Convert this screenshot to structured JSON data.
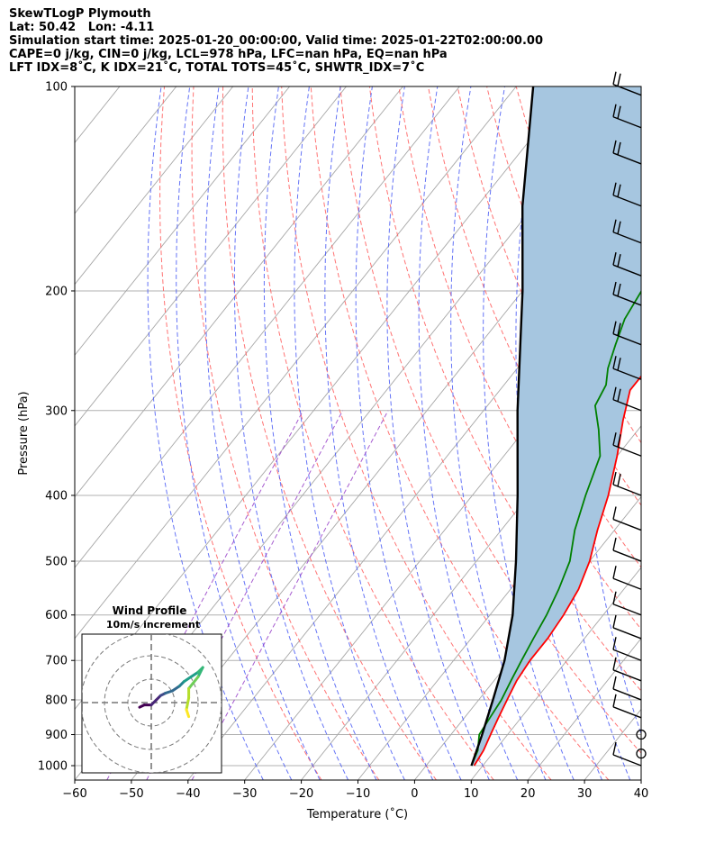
{
  "header": {
    "line1": "SkewTLogP Plymouth",
    "line2": "Lat: 50.42   Lon: -4.11",
    "line3": "Simulation start time: 2025-01-20_00:00:00, Valid time: 2025-01-22T02:00:00.00",
    "line4": "CAPE=0 j/kg, CIN=0 j/kg, LCL=978 hPa, LFC=nan hPa, EQ=nan hPa",
    "line5": "LFT IDX=8˚C, K IDX=21˚C, TOTAL TOTS=45˚C, SHWTR_IDX=7˚C"
  },
  "chart_data": {
    "type": "line",
    "xlabel": "Temperature (˚C)",
    "ylabel": "Pressure (hPa)",
    "xlim": [
      -60,
      40
    ],
    "ylim": [
      1050,
      100
    ],
    "y_scale": "log",
    "x_ticks": [
      "−60",
      "−50",
      "−40",
      "−30",
      "−20",
      "−10",
      "0",
      "10",
      "20",
      "30",
      "40"
    ],
    "y_ticks": [
      "100",
      "200",
      "300",
      "400",
      "500",
      "600",
      "700",
      "800",
      "900",
      "1000"
    ],
    "grid": true,
    "series": [
      {
        "color": "#ff0000",
        "points": [
          [
            8.5,
            1000
          ],
          [
            8,
            950
          ],
          [
            7,
            900
          ],
          [
            6,
            850
          ],
          [
            5,
            800
          ],
          [
            4,
            750
          ],
          [
            3.5,
            700
          ],
          [
            3.5,
            650
          ],
          [
            3,
            600
          ],
          [
            2,
            550
          ],
          [
            0,
            500
          ],
          [
            -3,
            450
          ],
          [
            -6,
            400
          ],
          [
            -10,
            350
          ],
          [
            -14,
            310
          ],
          [
            -17,
            280
          ],
          [
            -17,
            260
          ],
          [
            -17,
            250
          ],
          [
            -19,
            230
          ],
          [
            -24,
            210
          ],
          [
            -32,
            180
          ],
          [
            -36,
            160
          ],
          [
            -40,
            140
          ],
          [
            -45,
            120
          ],
          [
            -47,
            110
          ],
          [
            -48,
            100
          ]
        ]
      },
      {
        "color": "#008000",
        "points": [
          [
            8,
            1000
          ],
          [
            7,
            950
          ],
          [
            5,
            900
          ],
          [
            4.5,
            850
          ],
          [
            4,
            800
          ],
          [
            3,
            750
          ],
          [
            2,
            700
          ],
          [
            1,
            650
          ],
          [
            0,
            600
          ],
          [
            -1.5,
            550
          ],
          [
            -3.5,
            500
          ],
          [
            -7,
            450
          ],
          [
            -10,
            400
          ],
          [
            -13,
            350
          ],
          [
            -17,
            320
          ],
          [
            -21,
            295
          ],
          [
            -22,
            275
          ],
          [
            -24,
            260
          ],
          [
            -26,
            240
          ],
          [
            -28,
            220
          ],
          [
            -29,
            200
          ],
          [
            -31,
            185
          ],
          [
            -33,
            170
          ],
          [
            -35,
            150
          ],
          [
            -40,
            140
          ],
          [
            -44,
            125
          ],
          [
            -48,
            110
          ],
          [
            -51,
            100
          ]
        ]
      },
      {
        "color": "#000000",
        "points": [
          [
            8,
            1000
          ],
          [
            5.5,
            900
          ],
          [
            2.5,
            800
          ],
          [
            -1,
            700
          ],
          [
            -6,
            600
          ],
          [
            -13,
            500
          ],
          [
            -22,
            400
          ],
          [
            -34,
            300
          ],
          [
            -50,
            200
          ],
          [
            -62,
            150
          ],
          [
            -77,
            100
          ]
        ]
      }
    ],
    "shaded_region": "CAPE/CIN between parcel and environment (#a6c6e0)",
    "wind_barbs": [
      {
        "p": 1000,
        "kind": "barb"
      },
      {
        "p": 960,
        "kind": "calm"
      },
      {
        "p": 900,
        "kind": "calm"
      },
      {
        "p": 850,
        "kind": "barb"
      },
      {
        "p": 800,
        "kind": "barb"
      },
      {
        "p": 750,
        "kind": "barb"
      },
      {
        "p": 700,
        "kind": "barb"
      },
      {
        "p": 650,
        "kind": "barb"
      },
      {
        "p": 600,
        "kind": "barb"
      },
      {
        "p": 550,
        "kind": "barb"
      },
      {
        "p": 500,
        "kind": "barb"
      },
      {
        "p": 450,
        "kind": "barb"
      },
      {
        "p": 400,
        "kind": "barb"
      },
      {
        "p": 350,
        "kind": "barb"
      },
      {
        "p": 300,
        "kind": "barb"
      },
      {
        "p": 270,
        "kind": "barb"
      },
      {
        "p": 240,
        "kind": "barb"
      },
      {
        "p": 210,
        "kind": "barb"
      },
      {
        "p": 190,
        "kind": "barb"
      },
      {
        "p": 170,
        "kind": "barb"
      },
      {
        "p": 150,
        "kind": "barb"
      },
      {
        "p": 130,
        "kind": "barb"
      },
      {
        "p": 115,
        "kind": "barb"
      },
      {
        "p": 103,
        "kind": "barb"
      }
    ],
    "inset": {
      "title_line1": "Wind Profile",
      "title_line2": "10m/s increment",
      "type": "hodograph",
      "u_v_points": [
        [
          -5,
          -2
        ],
        [
          -3,
          -1
        ],
        [
          0,
          -1
        ],
        [
          2,
          1
        ],
        [
          4,
          3
        ],
        [
          6,
          4
        ],
        [
          9,
          5
        ],
        [
          12,
          7
        ],
        [
          14,
          9
        ],
        [
          17,
          11
        ],
        [
          20,
          13
        ],
        [
          22,
          15
        ],
        [
          20,
          11
        ],
        [
          16,
          6
        ],
        [
          16,
          2
        ],
        [
          15,
          -3
        ],
        [
          16,
          -6
        ]
      ]
    }
  }
}
